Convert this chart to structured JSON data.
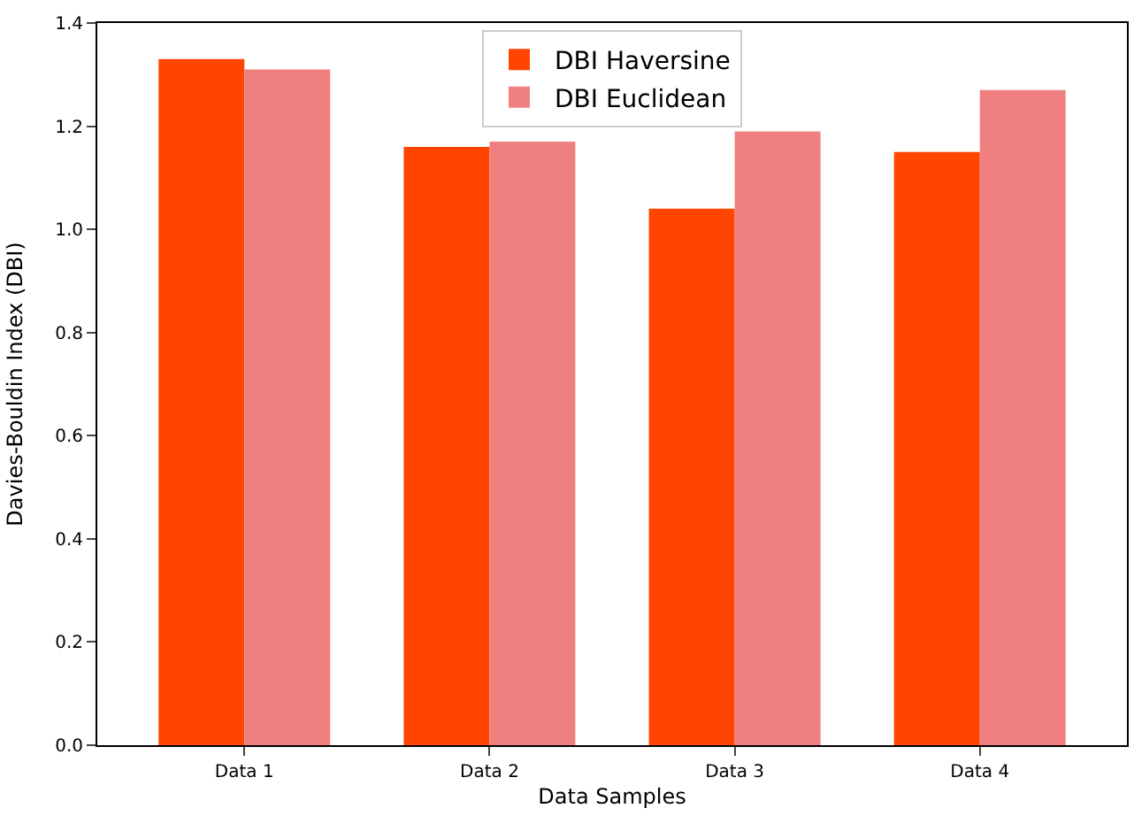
{
  "chart_data": {
    "type": "bar",
    "xlabel": "Data Samples",
    "ylabel": "Davies-Bouldin Index (DBI)",
    "categories": [
      "Data 1",
      "Data 2",
      "Data 3",
      "Data 4"
    ],
    "series": [
      {
        "name": "DBI Haversine",
        "color": "#ff4500",
        "values": [
          1.33,
          1.16,
          1.04,
          1.15
        ]
      },
      {
        "name": "DBI Euclidean",
        "color": "#f08080",
        "values": [
          1.31,
          1.17,
          1.19,
          1.27
        ]
      }
    ],
    "ylim": [
      0,
      1.4
    ],
    "yticks": [
      {
        "value": 0,
        "label": "0.0"
      },
      0.2,
      0.4,
      0.6,
      0.8,
      {
        "value": 1,
        "label": "1.0"
      },
      1.2,
      1.4
    ],
    "grid": false,
    "legend": "top"
  }
}
